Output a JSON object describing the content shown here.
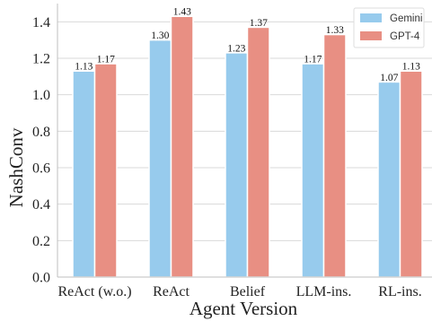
{
  "chart_data": {
    "type": "bar",
    "categories": [
      "ReAct (w.o.)",
      "ReAct",
      "Belief",
      "LLM-ins.",
      "RL-ins."
    ],
    "series": [
      {
        "name": "Gemini",
        "values": [
          1.13,
          1.3,
          1.23,
          1.17,
          1.07
        ],
        "labels": [
          "1.13",
          "1.30",
          "1.23",
          "1.17",
          "1.07"
        ],
        "color": "#97cbed"
      },
      {
        "name": "GPT-4",
        "values": [
          1.17,
          1.43,
          1.37,
          1.33,
          1.13
        ],
        "labels": [
          "1.17",
          "1.43",
          "1.37",
          "1.33",
          "1.13"
        ],
        "color": "#e88f83"
      }
    ],
    "title": "",
    "xlabel": "Agent Version",
    "ylabel": "NashConv",
    "ylim": [
      0,
      1.5
    ],
    "yticks": [
      "0.0",
      "0.2",
      "0.4",
      "0.6",
      "0.8",
      "1.0",
      "1.2",
      "1.4"
    ],
    "grid": "horizontal",
    "legend_position": "top-right"
  }
}
